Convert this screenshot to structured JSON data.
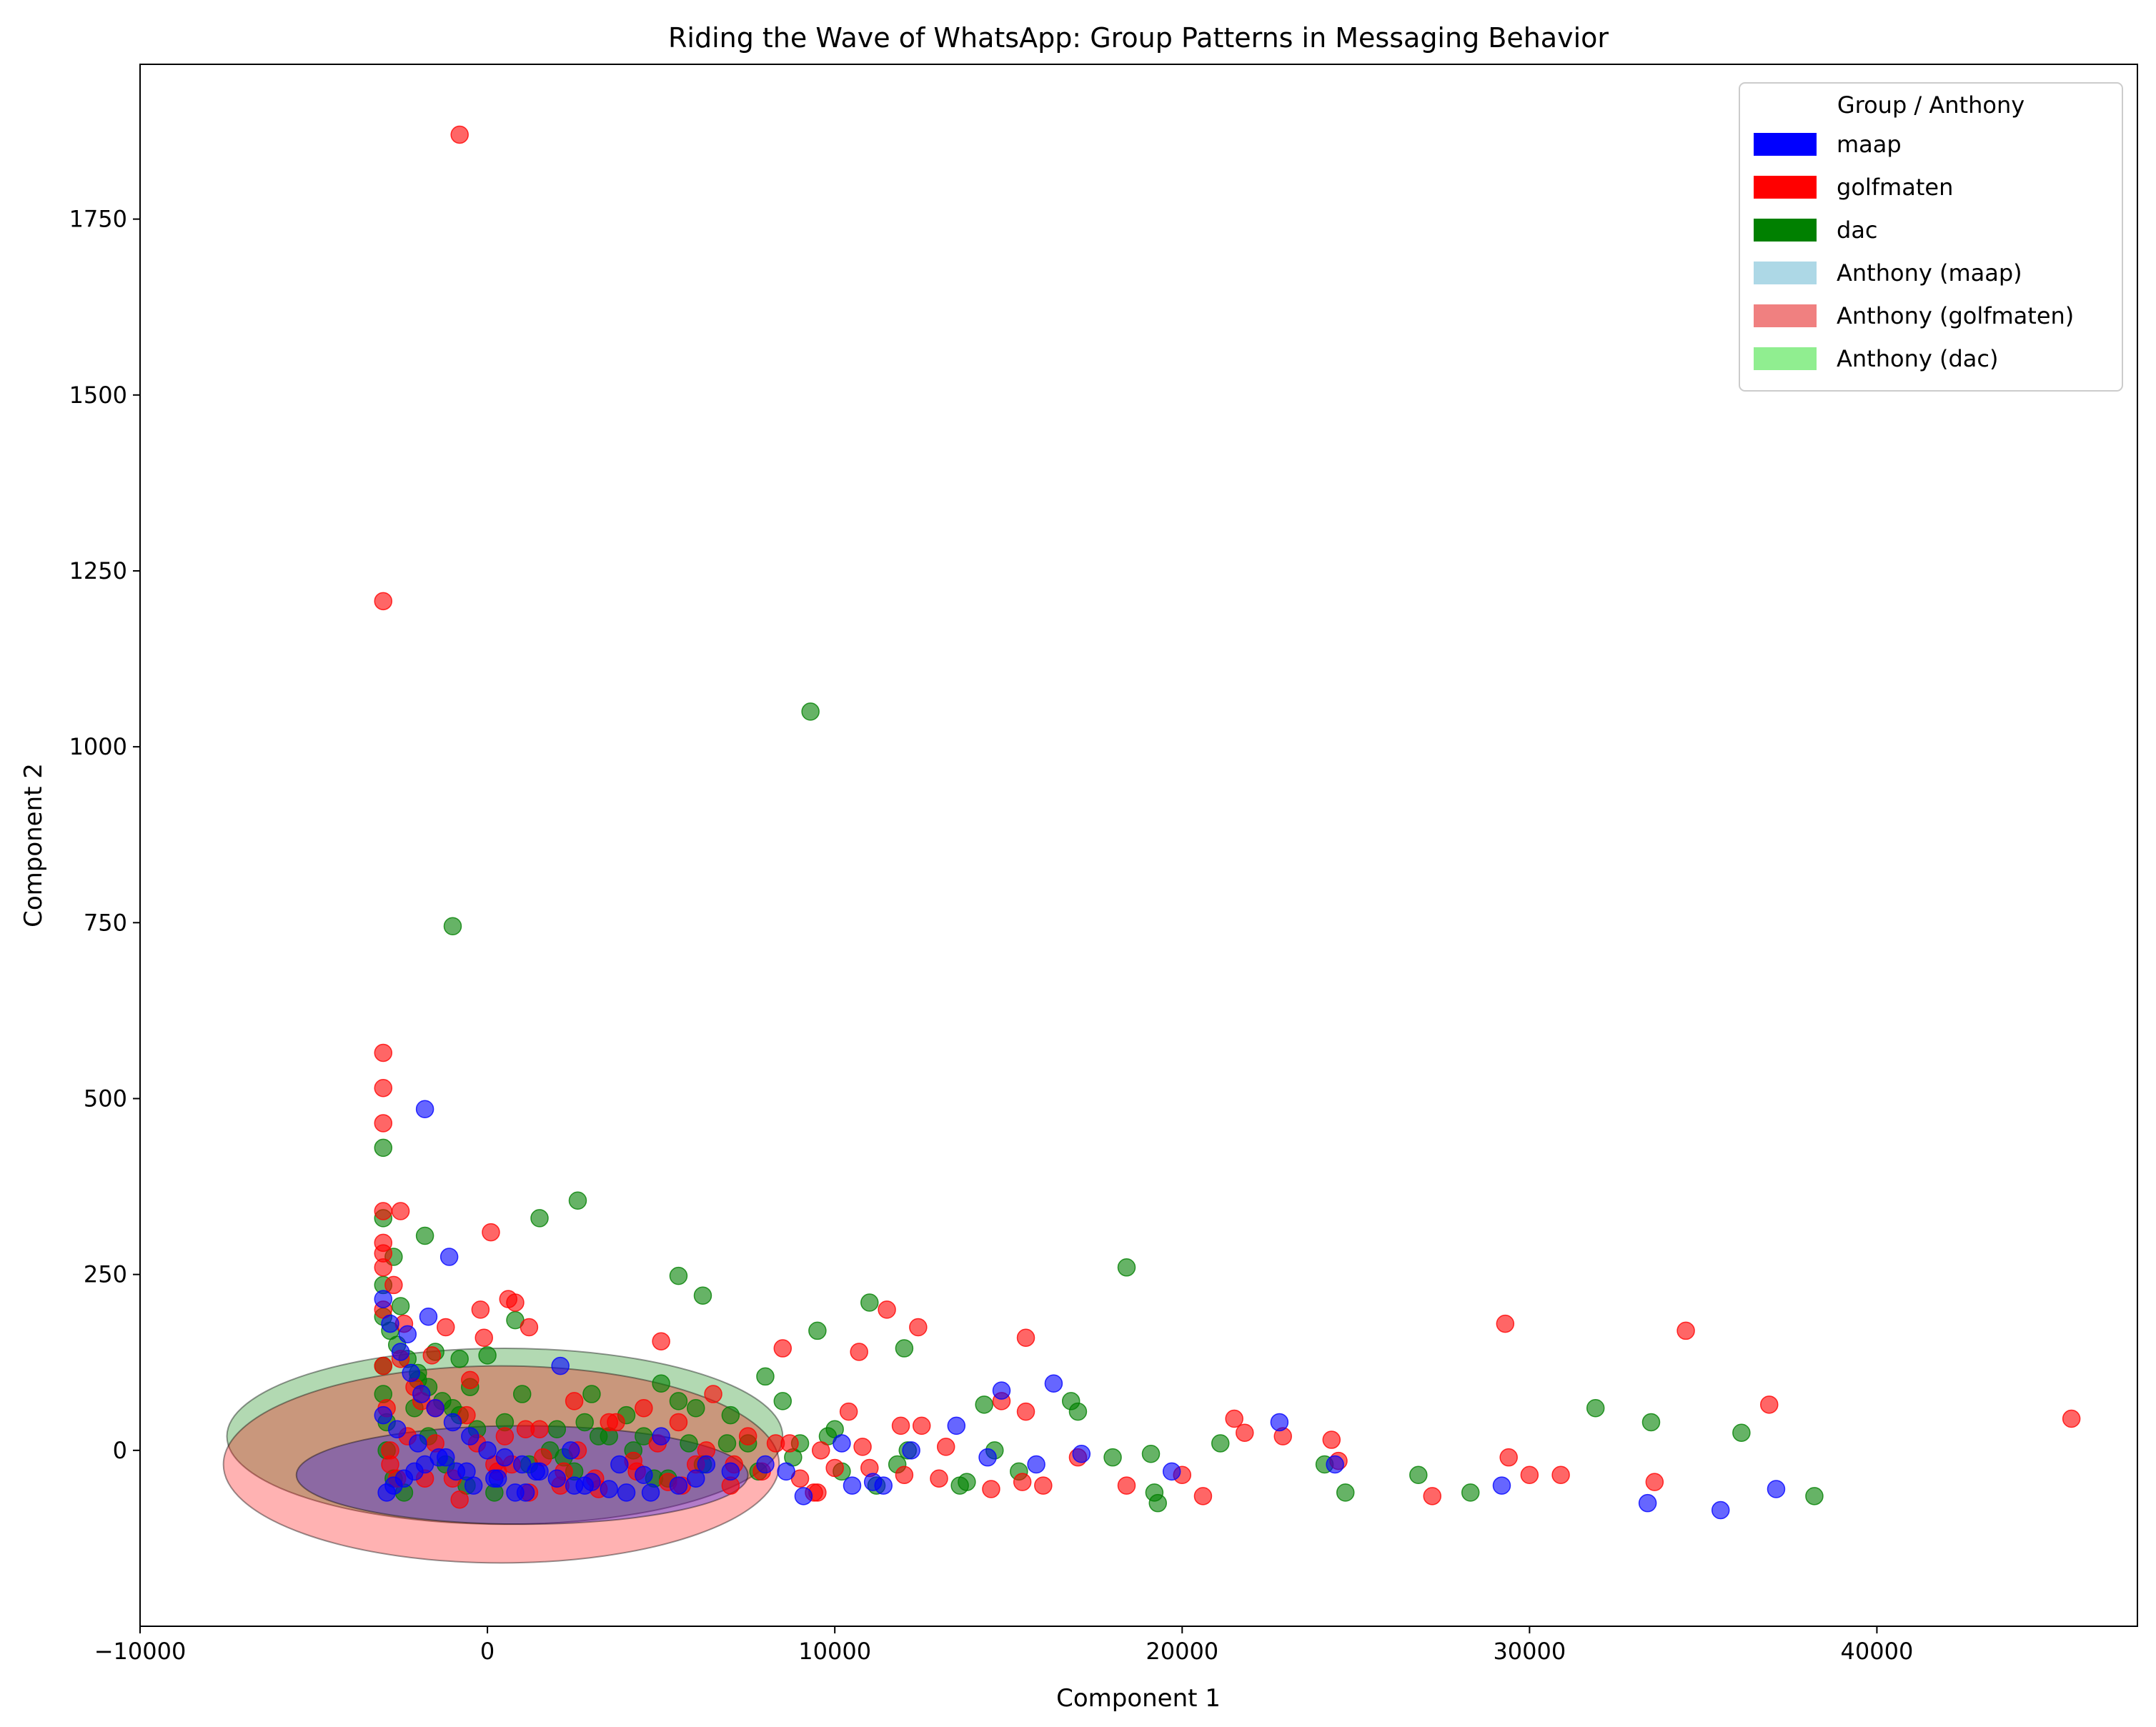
{
  "chart_data": {
    "type": "scatter",
    "title": "Riding the Wave of WhatsApp: Group Patterns in Messaging Behavior",
    "xlabel": "Component 1",
    "ylabel": "Component 2",
    "xlim": [
      -10000,
      47500
    ],
    "ylim": [
      -250,
      1970
    ],
    "x_ticks": [
      -10000,
      0,
      10000,
      20000,
      30000,
      40000
    ],
    "x_tick_labels": [
      "−10000",
      "0",
      "10000",
      "20000",
      "30000",
      "40000"
    ],
    "y_ticks": [
      0,
      250,
      500,
      750,
      1000,
      1250,
      1500,
      1750
    ],
    "y_tick_labels": [
      "0",
      "250",
      "500",
      "750",
      "1000",
      "1250",
      "1500",
      "1750"
    ],
    "grid": false,
    "legend": {
      "title": "Group / Anthony",
      "position": "top-right",
      "entries": [
        {
          "label": "maap",
          "color": "#0000ff"
        },
        {
          "label": "golfmaten",
          "color": "#ff0000"
        },
        {
          "label": "dac",
          "color": "#008000"
        },
        {
          "label": "Anthony (maap)",
          "color": "#add8e6"
        },
        {
          "label": "Anthony (golfmaten)",
          "color": "#f08080"
        },
        {
          "label": "Anthony (dac)",
          "color": "#90ee90"
        }
      ]
    },
    "ellipses": [
      {
        "group": "dac",
        "cx": 500,
        "cy": 20,
        "rx": 8000,
        "ry": 125,
        "fill": "#008000",
        "opacity": 0.3
      },
      {
        "group": "golfmaten",
        "cx": 400,
        "cy": -20,
        "rx": 8000,
        "ry": 140,
        "fill": "#ff0000",
        "opacity": 0.3
      },
      {
        "group": "maap",
        "cx": 1000,
        "cy": -35,
        "rx": 6500,
        "ry": 70,
        "fill": "#0000ff",
        "opacity": 0.3
      }
    ],
    "series": [
      {
        "name": "dac",
        "color": "#008000",
        "x": [
          9300,
          -1000,
          -3000,
          -3000,
          2600,
          1500,
          -1800,
          -2700,
          -3000,
          5500,
          6200,
          -2500,
          -1500,
          800,
          -800,
          0,
          5000,
          8000,
          9500,
          10000,
          11000,
          12000,
          14300,
          16800,
          17000,
          18400,
          18000,
          19100,
          19200,
          19300,
          21100,
          24100,
          24700,
          26800,
          28300,
          31900,
          33500,
          36100,
          38200,
          14600,
          12100,
          13600,
          15300,
          7500,
          4000,
          2000,
          3000,
          6000,
          4500,
          2500,
          -2000,
          -1000,
          500,
          -500,
          1000,
          3500,
          5500,
          7000,
          8500,
          9000,
          10200,
          11800,
          13800,
          -3000,
          -2800,
          -2600,
          -2300,
          -2000,
          -1700,
          -1300,
          -800,
          -300,
          1200,
          2200,
          3200,
          4200,
          5200,
          6200,
          6900,
          7800,
          8800,
          9800,
          11200,
          -3000,
          -3000,
          -2900,
          -2900,
          -2700,
          -2400,
          -2100,
          -1700,
          -1200,
          -600,
          200,
          1800,
          2800,
          4800,
          5800
        ],
        "y": [
          1050,
          745,
          430,
          330,
          355,
          330,
          305,
          275,
          235,
          248,
          220,
          205,
          140,
          185,
          130,
          135,
          95,
          105,
          170,
          30,
          210,
          145,
          65,
          70,
          55,
          260,
          -10,
          -5,
          -60,
          -75,
          10,
          -20,
          -60,
          -35,
          -60,
          60,
          40,
          25,
          -65,
          0,
          0,
          -50,
          -30,
          10,
          50,
          30,
          80,
          60,
          20,
          -30,
          100,
          60,
          40,
          90,
          80,
          20,
          70,
          50,
          70,
          10,
          -30,
          -20,
          -45,
          190,
          170,
          150,
          130,
          110,
          90,
          70,
          50,
          30,
          -20,
          -10,
          20,
          0,
          -40,
          -20,
          10,
          -30,
          -10,
          20,
          -50,
          120,
          80,
          40,
          0,
          -40,
          -60,
          60,
          20,
          -20,
          -50,
          -60,
          0,
          40,
          -40,
          10
        ]
      },
      {
        "name": "golfmaten",
        "color": "#ff0000",
        "x": [
          -800,
          -3000,
          -3000,
          -3000,
          -3000,
          -3000,
          -3000,
          -3000,
          -2500,
          100,
          -2700,
          -2400,
          -1200,
          -1600,
          600,
          800,
          1200,
          -100,
          -200,
          5000,
          8500,
          10700,
          11500,
          12400,
          15500,
          22900,
          29300,
          34500,
          36900,
          45600,
          21500,
          21800,
          24300,
          24500,
          27200,
          29400,
          30000,
          30900,
          33600,
          18400,
          20000,
          20600,
          17000,
          15500,
          14800,
          13200,
          12500,
          11900,
          10800,
          10400,
          9600,
          9000,
          8300,
          7500,
          6500,
          5500,
          4500,
          3500,
          2500,
          1500,
          500,
          -500,
          -1500,
          -2500,
          16000,
          15400,
          14500,
          13000,
          12000,
          11000,
          10000,
          9500,
          7000,
          6000,
          5200,
          4200,
          3200,
          2200,
          1200,
          200,
          -800,
          -1800,
          -2800,
          -3000,
          -3000,
          -3000,
          -2900,
          -2800,
          -2600,
          -2300,
          -2100,
          -1900,
          -1500,
          -1000,
          -600,
          -300,
          300,
          700,
          1100,
          1600,
          2100,
          2600,
          3100,
          3700,
          4300,
          4900,
          5600,
          6300,
          7100,
          7900,
          8700,
          9400
        ],
        "y": [
          1870,
          1207,
          565,
          515,
          465,
          340,
          295,
          280,
          340,
          310,
          235,
          180,
          175,
          135,
          215,
          210,
          175,
          160,
          200,
          155,
          145,
          140,
          200,
          175,
          160,
          20,
          180,
          170,
          65,
          45,
          45,
          25,
          15,
          -15,
          -65,
          -10,
          -35,
          -35,
          -45,
          -50,
          -35,
          -65,
          -10,
          55,
          70,
          5,
          35,
          35,
          5,
          55,
          0,
          -40,
          10,
          20,
          80,
          40,
          60,
          40,
          70,
          30,
          20,
          100,
          60,
          130,
          -50,
          -45,
          -55,
          -40,
          -35,
          -25,
          -25,
          -60,
          -50,
          -20,
          -45,
          -15,
          -55,
          -30,
          -60,
          -20,
          -70,
          -40,
          -20,
          260,
          200,
          120,
          60,
          0,
          -40,
          20,
          90,
          70,
          10,
          -40,
          50,
          10,
          -30,
          -20,
          30,
          -10,
          -50,
          0,
          -40,
          40,
          -30,
          10,
          -50,
          0,
          -20,
          -30,
          10,
          -60
        ]
      },
      {
        "name": "maap",
        "color": "#0000ff",
        "x": [
          -1800,
          -1100,
          -2300,
          -1700,
          2100,
          5000,
          6300,
          8600,
          9100,
          10200,
          10500,
          11100,
          11400,
          12200,
          13500,
          14400,
          14800,
          15800,
          16300,
          17100,
          19700,
          22800,
          24400,
          29200,
          33400,
          35500,
          37100,
          -3000,
          -2800,
          -2500,
          -2200,
          -1900,
          -1500,
          -1000,
          -500,
          0,
          500,
          1000,
          1500,
          2000,
          2500,
          3000,
          3500,
          4000,
          4500,
          5500,
          6000,
          7000,
          8000,
          -2900,
          -2700,
          -2400,
          -2100,
          -1800,
          -1400,
          -900,
          -400,
          200,
          800,
          1400,
          2800,
          3800,
          4700,
          -3000,
          -2600,
          -2000,
          -1200,
          -600,
          300,
          1100,
          2400
        ],
        "y": [
          485,
          275,
          165,
          190,
          120,
          20,
          -20,
          -30,
          -65,
          10,
          -50,
          -45,
          -50,
          0,
          35,
          -10,
          85,
          -20,
          95,
          -5,
          -30,
          40,
          -20,
          -50,
          -75,
          -85,
          -55,
          215,
          180,
          140,
          110,
          80,
          60,
          40,
          20,
          0,
          -10,
          -20,
          -30,
          -40,
          -50,
          -45,
          -55,
          -60,
          -35,
          -50,
          -40,
          -30,
          -20,
          -60,
          -50,
          -40,
          -30,
          -20,
          -10,
          -30,
          -50,
          -40,
          -60,
          -30,
          -50,
          -20,
          -60,
          50,
          30,
          10,
          -10,
          -30,
          -40,
          -60,
          0
        ]
      }
    ]
  }
}
